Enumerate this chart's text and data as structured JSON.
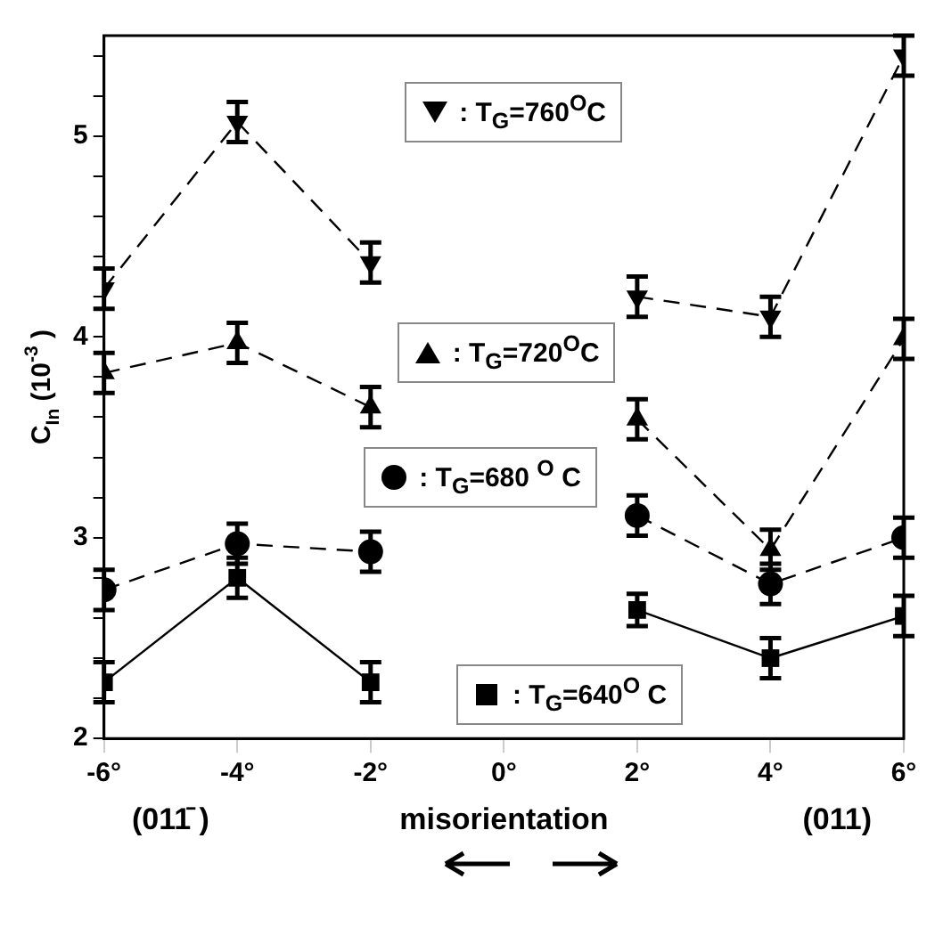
{
  "chart_data": {
    "type": "scatter",
    "xlabel": "misorientation",
    "ylabel": "C$_{In}$ (10$^{-3}$ )",
    "x": [
      -6,
      -4,
      -2,
      0,
      2,
      4,
      6
    ],
    "series": [
      {
        "name": ": T$_{G}$=640$^{O}$ C",
        "type": "line",
        "color": "#000000",
        "marker": "square",
        "line_style": "solid",
        "values": [
          2.28,
          2.8,
          2.28,
          null,
          2.64,
          2.4,
          2.61
        ],
        "errors": [
          0.1,
          0.1,
          0.1,
          null,
          0.08,
          0.1,
          0.1
        ]
      },
      {
        "name": ": T$_{G}$=680 $^{O}$ C",
        "type": "line",
        "color": "#000000",
        "marker": "circle",
        "line_style": "dashed",
        "values": [
          2.74,
          2.97,
          2.93,
          null,
          3.11,
          2.77,
          3.0
        ],
        "errors": [
          0.1,
          0.1,
          0.1,
          null,
          0.1,
          0.1,
          0.1
        ]
      },
      {
        "name": ": T$_{G}$=720$^{O}$C",
        "type": "line",
        "color": "#000000",
        "marker": "triangle",
        "line_style": "dashed",
        "values": [
          3.82,
          3.97,
          3.65,
          null,
          3.59,
          2.94,
          3.99
        ],
        "errors": [
          0.1,
          0.1,
          0.1,
          null,
          0.1,
          0.1,
          0.1
        ]
      },
      {
        "name": ": T$_{G}$=760$^{O}$C",
        "type": "line",
        "color": "#000000",
        "marker": "triangle-down",
        "line_style": "dashed",
        "values": [
          4.24,
          5.07,
          4.37,
          null,
          4.2,
          4.1,
          5.4
        ],
        "errors": [
          0.1,
          0.1,
          0.1,
          null,
          0.1,
          0.1,
          0.1
        ]
      }
    ],
    "xlim": [
      -6,
      6
    ],
    "xticks": [
      {
        "value": -6,
        "label": "-6°"
      },
      {
        "value": -4,
        "label": "-4°"
      },
      {
        "value": -2,
        "label": "-2°"
      },
      {
        "value": 0,
        "label": "0°"
      },
      {
        "value": 2,
        "label": "2°"
      },
      {
        "value": 4,
        "label": "4°"
      },
      {
        "value": 6,
        "label": "6°"
      }
    ],
    "ylim": [
      2,
      5.5
    ],
    "yticks": [
      2,
      {
        "value": 2.2,
        "label": null
      },
      {
        "value": 2.4,
        "label": null
      },
      {
        "value": 2.6,
        "label": null
      },
      {
        "value": 2.8,
        "label": null
      },
      3,
      {
        "value": 3.2,
        "label": null
      },
      {
        "value": 3.4,
        "label": null
      },
      {
        "value": 3.6,
        "label": null
      },
      {
        "value": 3.8,
        "label": null
      },
      4,
      {
        "value": 4.2,
        "label": null
      },
      {
        "value": 4.4,
        "label": null
      },
      {
        "value": 4.6,
        "label": null
      },
      {
        "value": 4.8,
        "label": null
      },
      5,
      {
        "value": 5.2,
        "label": null
      },
      {
        "value": 5.4,
        "label": null
      }
    ],
    "annotations": [
      "(011̄ )",
      "(011)"
    ],
    "grid": false,
    "legend": "center"
  }
}
